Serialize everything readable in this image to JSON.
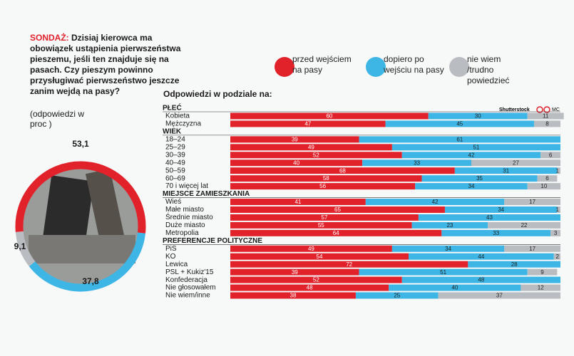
{
  "header": {
    "kicker": "SONDAŻ:",
    "question": "Dzisiaj kierowca ma obowiązek ustąpienia pierwszeństwa pieszemu, jeśli ten znajduje się na pasach. Czy pieszym powinno przysługiwać pierwszeństwo jeszcze zanim wejdą na pasy?"
  },
  "credit": "Shutterstock",
  "author": "MC",
  "chart_data": [
    {
      "type": "pie",
      "subtitle": "(odpowiedzi w proc )",
      "categories": [
        "przed wejściem na pasy",
        "dopiero po wejściu na pasy",
        "nie wiem /trudno powiedzieć"
      ],
      "values": [
        53.1,
        37.8,
        9.1
      ],
      "value_labels": [
        "53,1",
        "37,8",
        "9,1"
      ],
      "colors": [
        "#e1222b",
        "#3db6e6",
        "#b9bdc1"
      ]
    },
    {
      "type": "stacked-bar",
      "title": "Odpowiedzi w podziale na:",
      "categories": [
        "PŁEĆ",
        "Kobieta",
        "Mężczyzna",
        "WIEK",
        "18–24",
        "25–29",
        "30–39",
        "40–49",
        "50–59",
        "60–69",
        "70 i więcej lat",
        "MIEJSCE ZAMIESZKANIA",
        "Wieś",
        "Małe miasto",
        "Średnie miasto",
        "Duże miasto",
        "Metropolia",
        "PREFERENCJE POLITYCZNE",
        "PiS",
        "KO",
        "Lewica",
        "PSL + Kukiz'15",
        "Konfederacja",
        "Nie głosowałem",
        "Nie wiem/inne"
      ],
      "xlim": [
        0,
        100
      ],
      "series": [
        {
          "color": "#e1222b",
          "values": [
            null,
            60,
            47,
            null,
            39,
            49,
            52,
            40,
            68,
            58,
            56,
            null,
            41,
            65,
            57,
            55,
            64,
            null,
            49,
            54,
            72,
            39,
            52,
            48,
            38
          ]
        },
        {
          "color": "#3db6e6",
          "values": [
            null,
            30,
            45,
            null,
            61,
            51,
            42,
            33,
            31,
            35,
            34,
            null,
            42,
            34,
            43,
            23,
            33,
            null,
            34,
            44,
            28,
            51,
            48,
            40,
            25
          ]
        },
        {
          "color": "#b9bdc1",
          "values": [
            null,
            11,
            8,
            null,
            null,
            null,
            6,
            27,
            1,
            6,
            10,
            null,
            17,
            1,
            null,
            22,
            3,
            null,
            17,
            2,
            null,
            9,
            null,
            12,
            37
          ]
        }
      ]
    }
  ]
}
